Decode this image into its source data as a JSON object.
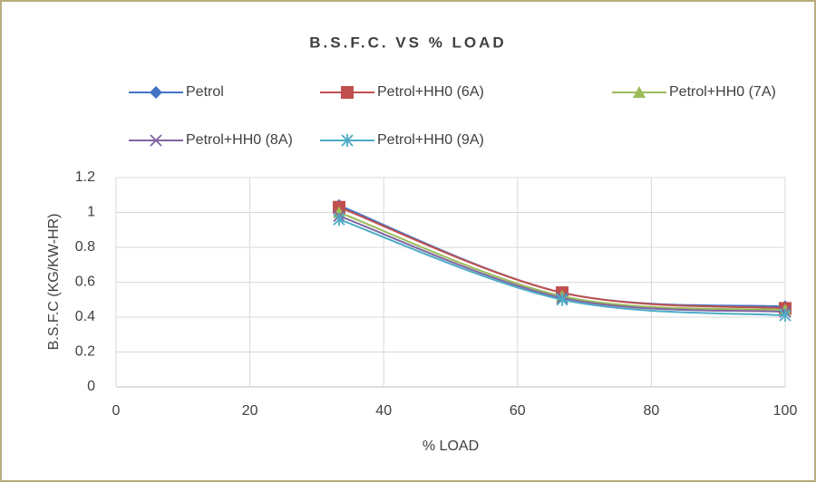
{
  "chart_data": {
    "type": "scatter-smooth",
    "title": "B.S.F.C. VS % LOAD",
    "xlabel": "% LOAD",
    "ylabel": "B.S.F.C (KG/KW-HR)",
    "x": [
      33.33,
      66.67,
      100
    ],
    "series": [
      {
        "name": "Petrol",
        "color": "#4472c4",
        "marker": "diamond",
        "values": [
          1.04,
          0.54,
          0.46
        ]
      },
      {
        "name": "Petrol+HH0 (6A)",
        "color": "#c0504d",
        "marker": "square",
        "values": [
          1.03,
          0.54,
          0.45
        ]
      },
      {
        "name": "Petrol+HH0 (7A)",
        "color": "#9bbb59",
        "marker": "triangle",
        "values": [
          1.0,
          0.52,
          0.44
        ]
      },
      {
        "name": "Petrol+HH0 (8A)",
        "color": "#8064a2",
        "marker": "x",
        "values": [
          0.98,
          0.51,
          0.43
        ]
      },
      {
        "name": "Petrol+HH0 (9A)",
        "color": "#4bacc6",
        "marker": "star",
        "values": [
          0.96,
          0.5,
          0.41
        ]
      }
    ],
    "xlim": [
      0,
      100
    ],
    "xticks": [
      0,
      20,
      40,
      60,
      80,
      100
    ],
    "ylim": [
      0,
      1.2
    ],
    "yticks": [
      0,
      0.2,
      0.4,
      0.6,
      0.8,
      1,
      1.2
    ],
    "grid": true,
    "legend": "top"
  }
}
